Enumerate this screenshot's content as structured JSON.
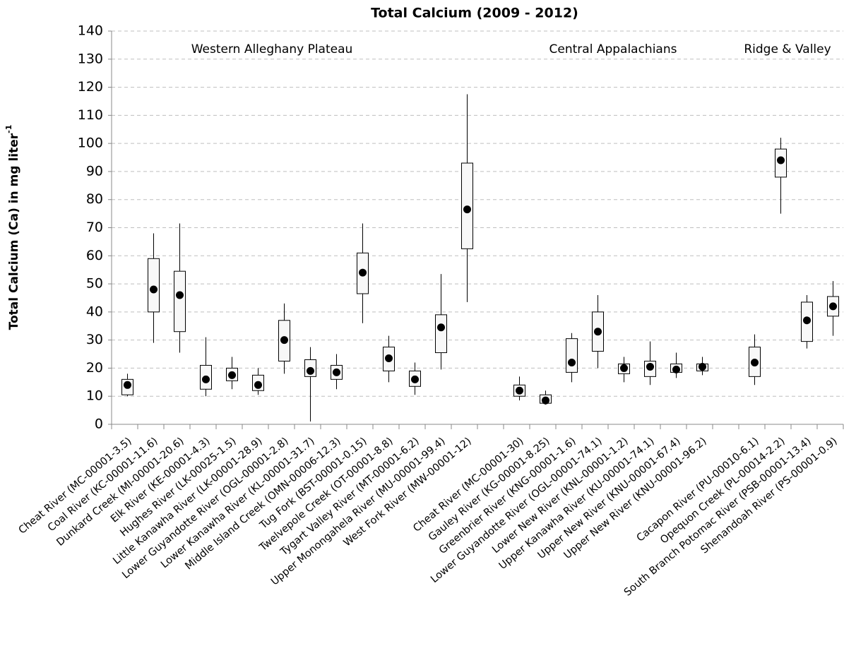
{
  "chart_data": {
    "type": "box",
    "title": "Total Calcium (2009 - 2012)",
    "ylabel": {
      "text": "Total Calcium (Ca) in mg liter",
      "superscript": "-1"
    },
    "annotations": [
      "Western Alleghany Plateau",
      "Central Appalachians",
      "Ridge & Valley"
    ],
    "categories": [
      "Cheat River (MC-00001-3.5)",
      "Coal River (KC-00001-11.6)",
      "Dunkard Creek (MI-00001-20.6)",
      "Elk River (KE-00001-4.3)",
      "Hughes River (LK-00025-1.5)",
      "Little Kanawha River (LK-00001-28.9)",
      "Lower Guyandotte River (OGL-00001-2.8)",
      "Lower Kanawha River (KL-00001-31.7)",
      "Middle Island Creek (OMN-00006-12.3)",
      "Tug Fork (BST-00001-0.15)",
      "Twelvepole Creek (OT-00001-8.8)",
      "Tygart Valley River (MT-00001-6.2)",
      "Upper Monongahela River (MU-00001-99.4)",
      "West Fork River (MW-00001-12)",
      null,
      "Cheat River (MC-00001-30)",
      "Gauley River (KG-00001-8.25)",
      "Greenbrier River (KNG-00001-1.6)",
      "Lower Guyandotte River (OGL-00001-74.1)",
      "Lower New River (KNL-00001-1.2)",
      "Upper Kanawha River (KU-00001-74.1)",
      "Upper New River (KNU-00001-67.4)",
      "Upper New River (KNU-00001-96.2)",
      null,
      "Cacapon River (PU-00010-6.1)",
      "Opequon Creek (PL-00014-2.2)",
      "South Branch Potomac River (PSB-00001-13.4)",
      "Shenandoah River (PS-00001-0.9)"
    ],
    "min": [
      10,
      29,
      25.5,
      10,
      12.5,
      10.5,
      18,
      1,
      12.5,
      36,
      15,
      10.5,
      19.5,
      43.5,
      null,
      8.5,
      7,
      15,
      20,
      15,
      14,
      16.5,
      17.5,
      null,
      14,
      75,
      27,
      31.5
    ],
    "q1": [
      10.5,
      40,
      33,
      12.5,
      15.5,
      12,
      22.5,
      17,
      16,
      46.5,
      19,
      13.5,
      25.5,
      62.5,
      null,
      10,
      7.5,
      18.5,
      26,
      18,
      17,
      18.5,
      19,
      null,
      17,
      88,
      29.5,
      38.5
    ],
    "median": [
      14,
      48,
      46,
      16,
      17.5,
      14,
      30,
      19,
      18.5,
      54,
      23.5,
      16,
      34.5,
      76.5,
      null,
      12,
      8.5,
      22,
      33,
      20,
      20.5,
      19.5,
      20.5,
      null,
      22,
      94,
      37,
      42
    ],
    "q3": [
      16,
      59,
      54.5,
      21,
      20,
      17.5,
      37,
      23,
      21,
      61,
      27.5,
      19,
      39,
      93,
      null,
      14,
      10.5,
      30.5,
      40,
      21.5,
      22.5,
      21.5,
      21.5,
      null,
      27.5,
      98,
      43.5,
      45.5
    ],
    "max": [
      18,
      68,
      71.5,
      31,
      24,
      20,
      43,
      27.5,
      25,
      71.5,
      31.5,
      22,
      53.5,
      117.5,
      null,
      17,
      12,
      32.5,
      46,
      24,
      29.5,
      25.5,
      24,
      null,
      32,
      102,
      46,
      51
    ],
    "box_color": "#f8f8f8",
    "median_color": "#000000",
    "ylim": [
      0,
      140
    ],
    "yticks": [
      0,
      10,
      20,
      30,
      40,
      50,
      60,
      70,
      80,
      90,
      100,
      110,
      120,
      130,
      140
    ],
    "grid": true
  }
}
